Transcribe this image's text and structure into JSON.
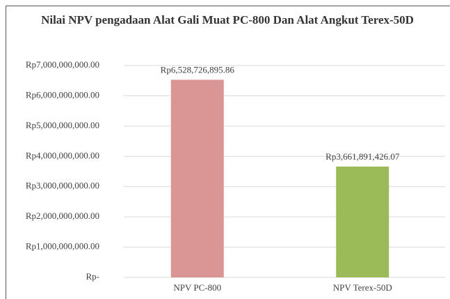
{
  "chart_data": {
    "type": "bar",
    "title": "Nilai NPV pengadaan Alat Gali Muat PC-800 Dan Alat Angkut Terex-50D",
    "categories": [
      "NPV PC-800",
      "NPV Terex-50D"
    ],
    "values": [
      6528726895.86,
      3661891426.07
    ],
    "value_labels": [
      "Rp6,528,726,895.86",
      "Rp3,661,891,426.07"
    ],
    "colors": [
      "#d99694",
      "#9bbb59"
    ],
    "ylim": [
      0,
      7000000000
    ],
    "yticks": [
      {
        "value": 0,
        "label": "Rp-"
      },
      {
        "value": 1000000000,
        "label": "Rp1,000,000,000.00"
      },
      {
        "value": 2000000000,
        "label": "Rp2,000,000,000.00"
      },
      {
        "value": 3000000000,
        "label": "Rp3,000,000,000.00"
      },
      {
        "value": 4000000000,
        "label": "Rp4,000,000,000.00"
      },
      {
        "value": 5000000000,
        "label": "Rp5,000,000,000.00"
      },
      {
        "value": 6000000000,
        "label": "Rp6,000,000,000.00"
      },
      {
        "value": 7000000000,
        "label": "Rp7,000,000,000.00"
      }
    ],
    "grid": true
  }
}
